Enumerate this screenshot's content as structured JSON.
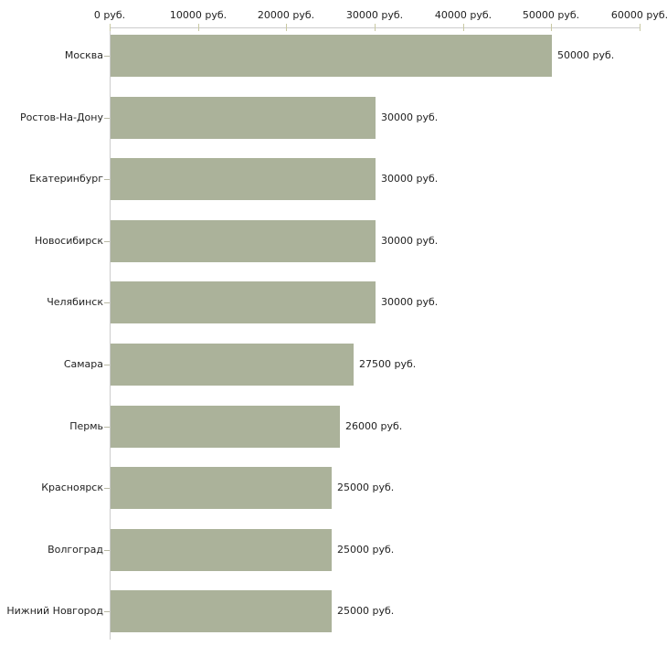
{
  "chart_data": {
    "type": "bar",
    "orientation": "horizontal",
    "title": "",
    "xlabel": "",
    "ylabel": "",
    "categories": [
      "Москва",
      "Ростов-На-Дону",
      "Екатеринбург",
      "Новосибирск",
      "Челябинск",
      "Самара",
      "Пермь",
      "Красноярск",
      "Волгоград",
      "Нижний Новгород"
    ],
    "values": [
      50000,
      30000,
      30000,
      30000,
      30000,
      27500,
      26000,
      25000,
      25000,
      25000
    ],
    "bar_labels": [
      "50000 руб.",
      "30000 руб.",
      "30000 руб.",
      "30000 руб.",
      "30000 руб.",
      "27500 руб.",
      "26000 руб.",
      "25000 руб.",
      "25000 руб.",
      "25000 руб."
    ],
    "unit": "руб.",
    "xlim": [
      0,
      60000
    ],
    "x_ticks": [
      0,
      10000,
      20000,
      30000,
      40000,
      50000,
      60000
    ],
    "x_tick_labels": [
      "0 руб.",
      "10000 руб.",
      "20000 руб.",
      "30000 руб.",
      "40000 руб.",
      "50000 руб.",
      "60000 руб."
    ],
    "grid": false,
    "legend": null,
    "axis_position": "top",
    "colors": {
      "bar": "#abb29a",
      "axis_line": "#cccccc",
      "x_tick": "#c9c9a3",
      "y_tick": "#b9b9a5",
      "text": "#222222",
      "background": "#ffffff"
    }
  }
}
